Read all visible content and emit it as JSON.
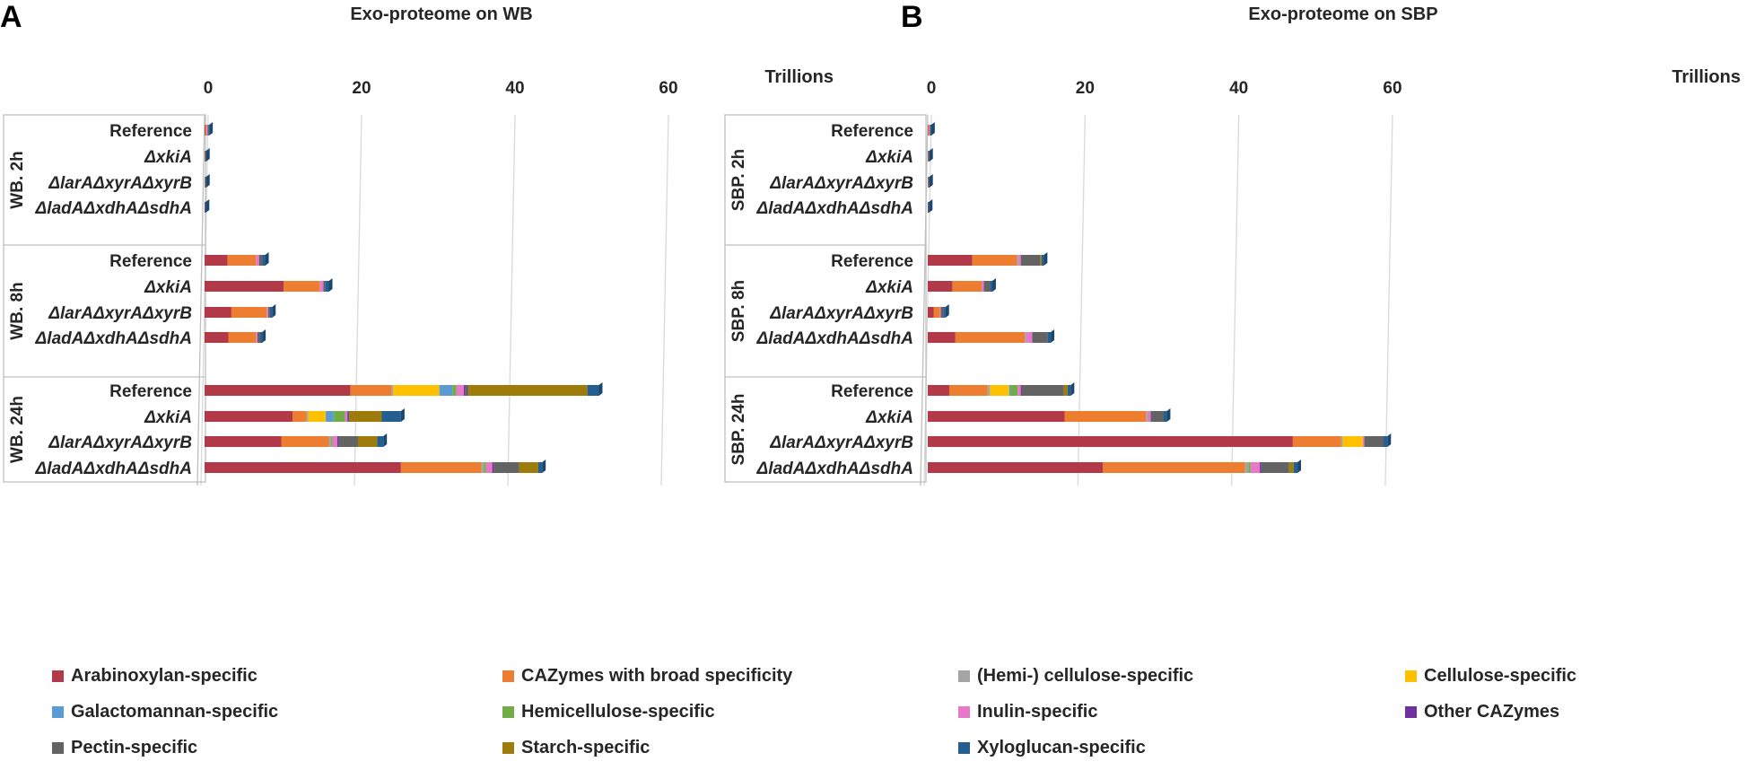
{
  "legend": [
    {
      "label": "Arabinoxylan-specific",
      "color": "#B23A48"
    },
    {
      "label": "CAZymes with broad specificity",
      "color": "#ED7D31"
    },
    {
      "label": "(Hemi-) cellulose-specific",
      "color": "#A5A5A5"
    },
    {
      "label": "Cellulose-specific",
      "color": "#FFC000"
    },
    {
      "label": "Galactomannan-specific",
      "color": "#5B9BD5"
    },
    {
      "label": "Hemicellulose-specific",
      "color": "#70AD47"
    },
    {
      "label": "Inulin-specific",
      "color": "#E879C8"
    },
    {
      "label": "Other CAZymes",
      "color": "#7030A0"
    },
    {
      "label": "Pectin-specific",
      "color": "#636363"
    },
    {
      "label": "Starch-specific",
      "color": "#9E7C0C"
    },
    {
      "label": "Xyloglucan-specific",
      "color": "#255E91"
    }
  ],
  "chart_data": [
    {
      "panel_letter": "A",
      "type": "bar",
      "orientation": "horizontal",
      "stacked": true,
      "title": "Exo-proteome on WB",
      "unit_label": "Trillions",
      "xlim": [
        0,
        60
      ],
      "ticks": [
        "0",
        "20",
        "40",
        "60"
      ],
      "tick_values": [
        0,
        20,
        40,
        60
      ],
      "groups": [
        {
          "label": "WB. 2h",
          "categories": [
            {
              "label": "Reference",
              "values": [
                0.1,
                0.15,
                0,
                0,
                0,
                0,
                0.15,
                0,
                0.1,
                0,
                0.1
              ]
            },
            {
              "label": "ΔxkiA",
              "values": [
                0.05,
                0.05,
                0,
                0,
                0,
                0,
                0,
                0,
                0,
                0,
                0.1
              ]
            },
            {
              "label": "ΔlarAΔxyrAΔxyrB",
              "values": [
                0.05,
                0.05,
                0,
                0,
                0,
                0,
                0,
                0,
                0,
                0,
                0.1
              ]
            },
            {
              "label": "ΔladAΔxdhAΔsdhA",
              "values": [
                0.05,
                0,
                0,
                0,
                0,
                0,
                0,
                0,
                0,
                0,
                0.1
              ]
            }
          ]
        },
        {
          "label": "WB. 8h",
          "categories": [
            {
              "label": "Reference",
              "values": [
                3.0,
                3.7,
                0,
                0,
                0,
                0,
                0.4,
                0,
                0.4,
                0,
                0.4
              ]
            },
            {
              "label": "ΔxkiA",
              "values": [
                10.3,
                4.7,
                0,
                0,
                0,
                0,
                0.5,
                0,
                0.2,
                0,
                0.5
              ]
            },
            {
              "label": "ΔlarAΔxyrAΔxyrB",
              "values": [
                3.5,
                4.6,
                0,
                0,
                0,
                0,
                0.2,
                0,
                0.2,
                0,
                0.3
              ]
            },
            {
              "label": "ΔladAΔxdhAΔsdhA",
              "values": [
                3.1,
                3.6,
                0,
                0,
                0,
                0,
                0.2,
                0,
                0.3,
                0,
                0.3
              ]
            }
          ]
        },
        {
          "label": "WB. 24h",
          "categories": [
            {
              "label": "Reference",
              "values": [
                19.0,
                5.4,
                0.2,
                6.0,
                1.7,
                0.5,
                1.0,
                0.2,
                0.4,
                15.5,
                1.5
              ]
            },
            {
              "label": "ΔxkiA",
              "values": [
                11.5,
                1.8,
                0.2,
                2.3,
                1.0,
                1.5,
                0.3,
                0.1,
                0.2,
                4.2,
                2.5
              ]
            },
            {
              "label": "ΔlarAΔxyrAΔxyrB",
              "values": [
                10.0,
                6.2,
                0.3,
                0,
                0,
                0.2,
                0.6,
                0.2,
                2.5,
                2.5,
                0.8
              ]
            },
            {
              "label": "ΔladAΔxdhAΔsdhA",
              "values": [
                25.6,
                10.5,
                0.3,
                0,
                0,
                0.3,
                0.8,
                0.2,
                3.3,
                2.5,
                0.5
              ]
            }
          ]
        }
      ]
    },
    {
      "panel_letter": "B",
      "type": "bar",
      "orientation": "horizontal",
      "stacked": true,
      "title": "Exo-proteome on SBP",
      "unit_label": "Trillions",
      "xlim": [
        0,
        60
      ],
      "ticks": [
        "0",
        "20",
        "40",
        "60"
      ],
      "tick_values": [
        0,
        20,
        40,
        60
      ],
      "groups": [
        {
          "label": "SBP. 2h",
          "categories": [
            {
              "label": "Reference",
              "values": [
                0.05,
                0.1,
                0,
                0,
                0,
                0,
                0.1,
                0,
                0.1,
                0,
                0.1
              ]
            },
            {
              "label": "ΔxkiA",
              "values": [
                0.05,
                0.05,
                0,
                0,
                0,
                0,
                0,
                0,
                0,
                0,
                0.1
              ]
            },
            {
              "label": "ΔlarAΔxyrAΔxyrB",
              "values": [
                0.05,
                0.05,
                0,
                0,
                0,
                0,
                0,
                0,
                0,
                0,
                0.1
              ]
            },
            {
              "label": "ΔladAΔxdhAΔsdhA",
              "values": [
                0.05,
                0,
                0,
                0,
                0,
                0,
                0,
                0,
                0,
                0,
                0.1
              ]
            }
          ]
        },
        {
          "label": "SBP. 8h",
          "categories": [
            {
              "label": "Reference",
              "values": [
                5.8,
                5.8,
                0.2,
                0,
                0,
                0,
                0.3,
                0,
                2.5,
                0.2,
                0.3
              ]
            },
            {
              "label": "ΔxkiA",
              "values": [
                3.2,
                3.8,
                0,
                0,
                0,
                0,
                0.3,
                0,
                0.8,
                0,
                0.3
              ]
            },
            {
              "label": "ΔlarAΔxyrAΔxyrB",
              "values": [
                0.8,
                0.8,
                0,
                0,
                0,
                0,
                0.1,
                0,
                0.3,
                0,
                0.3
              ]
            },
            {
              "label": "ΔladAΔxdhAΔsdhA",
              "values": [
                3.6,
                9.0,
                0.2,
                0,
                0,
                0,
                0.8,
                0,
                2.0,
                0,
                0.4
              ]
            }
          ]
        },
        {
          "label": "SBP. 24h",
          "categories": [
            {
              "label": "Reference",
              "values": [
                2.8,
                5.0,
                0.3,
                2.5,
                0.2,
                0.9,
                0.4,
                0.1,
                5.5,
                0.5,
                0.4
              ]
            },
            {
              "label": "ΔxkiA",
              "values": [
                17.8,
                10.6,
                0.2,
                0,
                0,
                0,
                0.4,
                0,
                1.7,
                0,
                0.4
              ]
            },
            {
              "label": "ΔlarAΔxyrAΔxyrB",
              "values": [
                47.5,
                6.3,
                0.2,
                2.6,
                0,
                0,
                0.2,
                0,
                2.5,
                0,
                0.5
              ]
            },
            {
              "label": "ΔladAΔxdhAΔsdhA",
              "values": [
                22.8,
                18.5,
                0.4,
                0,
                0,
                0.3,
                1.2,
                0.2,
                3.6,
                0.6,
                0.5
              ]
            }
          ]
        }
      ]
    }
  ]
}
